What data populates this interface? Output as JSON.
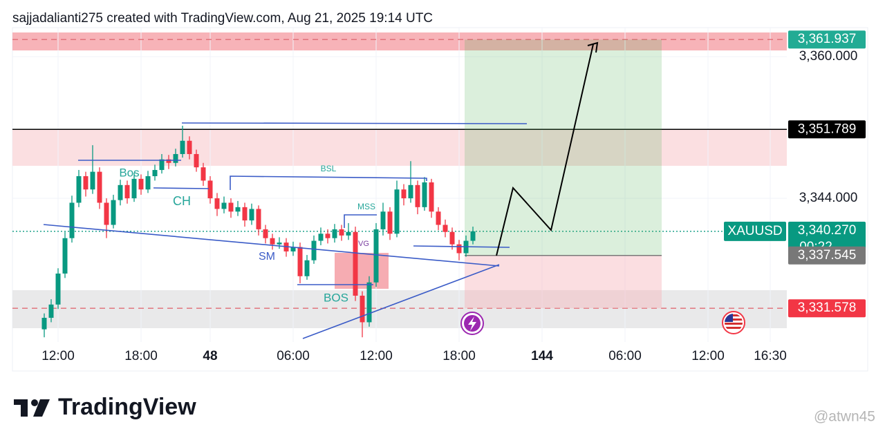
{
  "header": "sajjadalianti275 created with TradingView.com, Aug 21, 2025 19:14 UTC",
  "logo": "TradingView",
  "watermark": "@atwn45",
  "chart_data": {
    "type": "candlestick",
    "symbol": "XAUUSD",
    "countdown": "00:22",
    "up_color": "#089981",
    "down_color": "#f23645",
    "grid": true,
    "x": [
      0,
      2,
      4,
      6,
      8,
      10,
      12,
      14,
      16,
      18,
      20,
      22,
      24,
      26,
      28,
      30,
      32,
      34,
      36,
      38,
      40,
      42,
      44,
      46,
      48,
      50,
      52,
      54,
      56,
      58,
      60,
      62,
      64,
      66,
      68,
      70,
      72,
      74,
      76,
      78,
      80,
      82,
      84,
      86,
      88,
      90,
      92,
      94,
      96,
      98,
      100,
      102,
      104,
      106,
      108,
      110,
      112,
      114,
      116,
      118,
      120,
      122,
      124
    ],
    "open": [
      3329.2,
      3330.5,
      3332.0,
      3335.5,
      3339.5,
      3343.5,
      3346.5,
      3345.0,
      3347.0,
      3343.5,
      3341.0,
      3343.8,
      3345.5,
      3344.0,
      3346.2,
      3345.0,
      3346.5,
      3347.2,
      3348.4,
      3348.0,
      3349.0,
      3350.5,
      3349.0,
      3347.5,
      3346.0,
      3344.0,
      3342.8,
      3343.5,
      3342.5,
      3343.0,
      3341.5,
      3342.8,
      3340.5,
      3339.5,
      3338.8,
      3339.0,
      3338.0,
      3338.5,
      3335.2,
      3337.0,
      3339.2,
      3340.0,
      3339.5,
      3340.5,
      3339.8,
      3340.2,
      3333.0,
      3330.0,
      3334.5,
      3340.5,
      3342.5,
      3340.0,
      3345.0,
      3344.0,
      3345.5,
      3343.0,
      3345.8,
      3342.5,
      3341.0,
      3340.2,
      3338.8,
      3337.8,
      3339.2
    ],
    "high": [
      3331.0,
      3332.6,
      3336.1,
      3340.2,
      3344.3,
      3347.2,
      3347.0,
      3350.0,
      3347.5,
      3344.0,
      3344.4,
      3346.1,
      3346.0,
      3346.9,
      3346.7,
      3347.1,
      3347.8,
      3349.0,
      3348.9,
      3349.6,
      3352.2,
      3351.0,
      3349.5,
      3348.0,
      3346.5,
      3344.6,
      3344.2,
      3344.0,
      3343.7,
      3343.5,
      3343.4,
      3343.2,
      3341.0,
      3340.0,
      3339.6,
      3339.5,
      3339.1,
      3339.0,
      3337.6,
      3339.8,
      3340.7,
      3340.5,
      3341.1,
      3341.0,
      3341.2,
      3340.8,
      3333.5,
      3335.2,
      3341.2,
      3343.5,
      3343.0,
      3346.0,
      3345.6,
      3348.2,
      3346.0,
      3346.4,
      3346.2,
      3343.0,
      3341.6,
      3340.7,
      3339.3,
      3339.8,
      3340.8
    ],
    "low": [
      3328.3,
      3330.0,
      3331.5,
      3335.0,
      3339.0,
      3343.0,
      3344.2,
      3344.5,
      3342.8,
      3339.5,
      3340.6,
      3343.2,
      3343.4,
      3343.6,
      3344.4,
      3344.6,
      3346.0,
      3346.8,
      3347.3,
      3347.6,
      3348.6,
      3348.4,
      3347.0,
      3345.4,
      3343.4,
      3342.0,
      3342.3,
      3341.8,
      3342.0,
      3340.8,
      3341.0,
      3339.8,
      3338.9,
      3338.2,
      3338.3,
      3337.4,
      3337.5,
      3334.4,
      3334.8,
      3336.6,
      3338.7,
      3338.9,
      3339.0,
      3339.2,
      3339.3,
      3332.4,
      3328.3,
      3329.5,
      3334.0,
      3339.8,
      3339.3,
      3339.6,
      3343.2,
      3343.5,
      3342.2,
      3342.6,
      3341.8,
      3340.4,
      3339.6,
      3338.2,
      3337.0,
      3337.4,
      3338.8
    ],
    "close": [
      3330.5,
      3332.0,
      3335.5,
      3339.5,
      3343.5,
      3346.5,
      3345.0,
      3347.0,
      3343.5,
      3341.0,
      3343.8,
      3345.5,
      3344.0,
      3346.2,
      3345.0,
      3346.5,
      3347.2,
      3348.4,
      3348.0,
      3349.0,
      3350.5,
      3349.0,
      3347.5,
      3346.0,
      3344.0,
      3342.8,
      3343.5,
      3342.5,
      3343.0,
      3341.5,
      3342.8,
      3340.5,
      3339.5,
      3338.8,
      3339.0,
      3338.0,
      3338.5,
      3335.2,
      3337.0,
      3339.2,
      3340.0,
      3339.5,
      3340.5,
      3339.8,
      3340.2,
      3333.0,
      3330.0,
      3334.5,
      3340.5,
      3342.5,
      3340.0,
      3345.0,
      3344.0,
      3345.5,
      3343.0,
      3345.8,
      3342.5,
      3341.0,
      3340.2,
      3338.8,
      3337.8,
      3339.2,
      3340.27
    ],
    "xlim": [
      -9.2,
      214.8
    ],
    "xticks": [
      {
        "value": 4,
        "label": "12:00"
      },
      {
        "value": 28,
        "label": "18:00"
      },
      48,
      {
        "value": 72,
        "label": "06:00"
      },
      {
        "value": 96,
        "label": "12:00"
      },
      {
        "value": 120,
        "label": "18:00"
      },
      144,
      {
        "value": 168,
        "label": "06:00"
      },
      {
        "value": 192,
        "label": "12:00"
      },
      {
        "value": 210,
        "label": "16:30"
      }
    ],
    "ylim": [
      3327.77,
      3363.28
    ],
    "yticks": [
      {
        "value": 3360,
        "label": "3,360.000"
      },
      {
        "value": 3344,
        "label": "3,344.000"
      }
    ],
    "price_lines": [
      {
        "value": 3361.937,
        "label": "3,361.937",
        "color": "#22ab94",
        "line_color": "#e06b74",
        "style": "dashed"
      },
      {
        "value": 3351.789,
        "label": "3,351.789",
        "color": "#000000",
        "line_color": "#000000",
        "style": "solid"
      },
      {
        "value": 3340.27,
        "label": "3,340.270",
        "color": "#089981",
        "line_color": "#089981",
        "style": "dotted"
      },
      {
        "value": 3337.545,
        "label": "3,337.545",
        "color": "#787878",
        "line_color": "#787878",
        "style": "box"
      },
      {
        "value": 3331.578,
        "label": "3,331.578",
        "color": "#f23645",
        "line_color": "#e06b74",
        "style": "dashed"
      }
    ],
    "annotations": [
      "Bos",
      "CH",
      "BSL",
      "MSS",
      "SM",
      "VG",
      "BOS"
    ]
  }
}
